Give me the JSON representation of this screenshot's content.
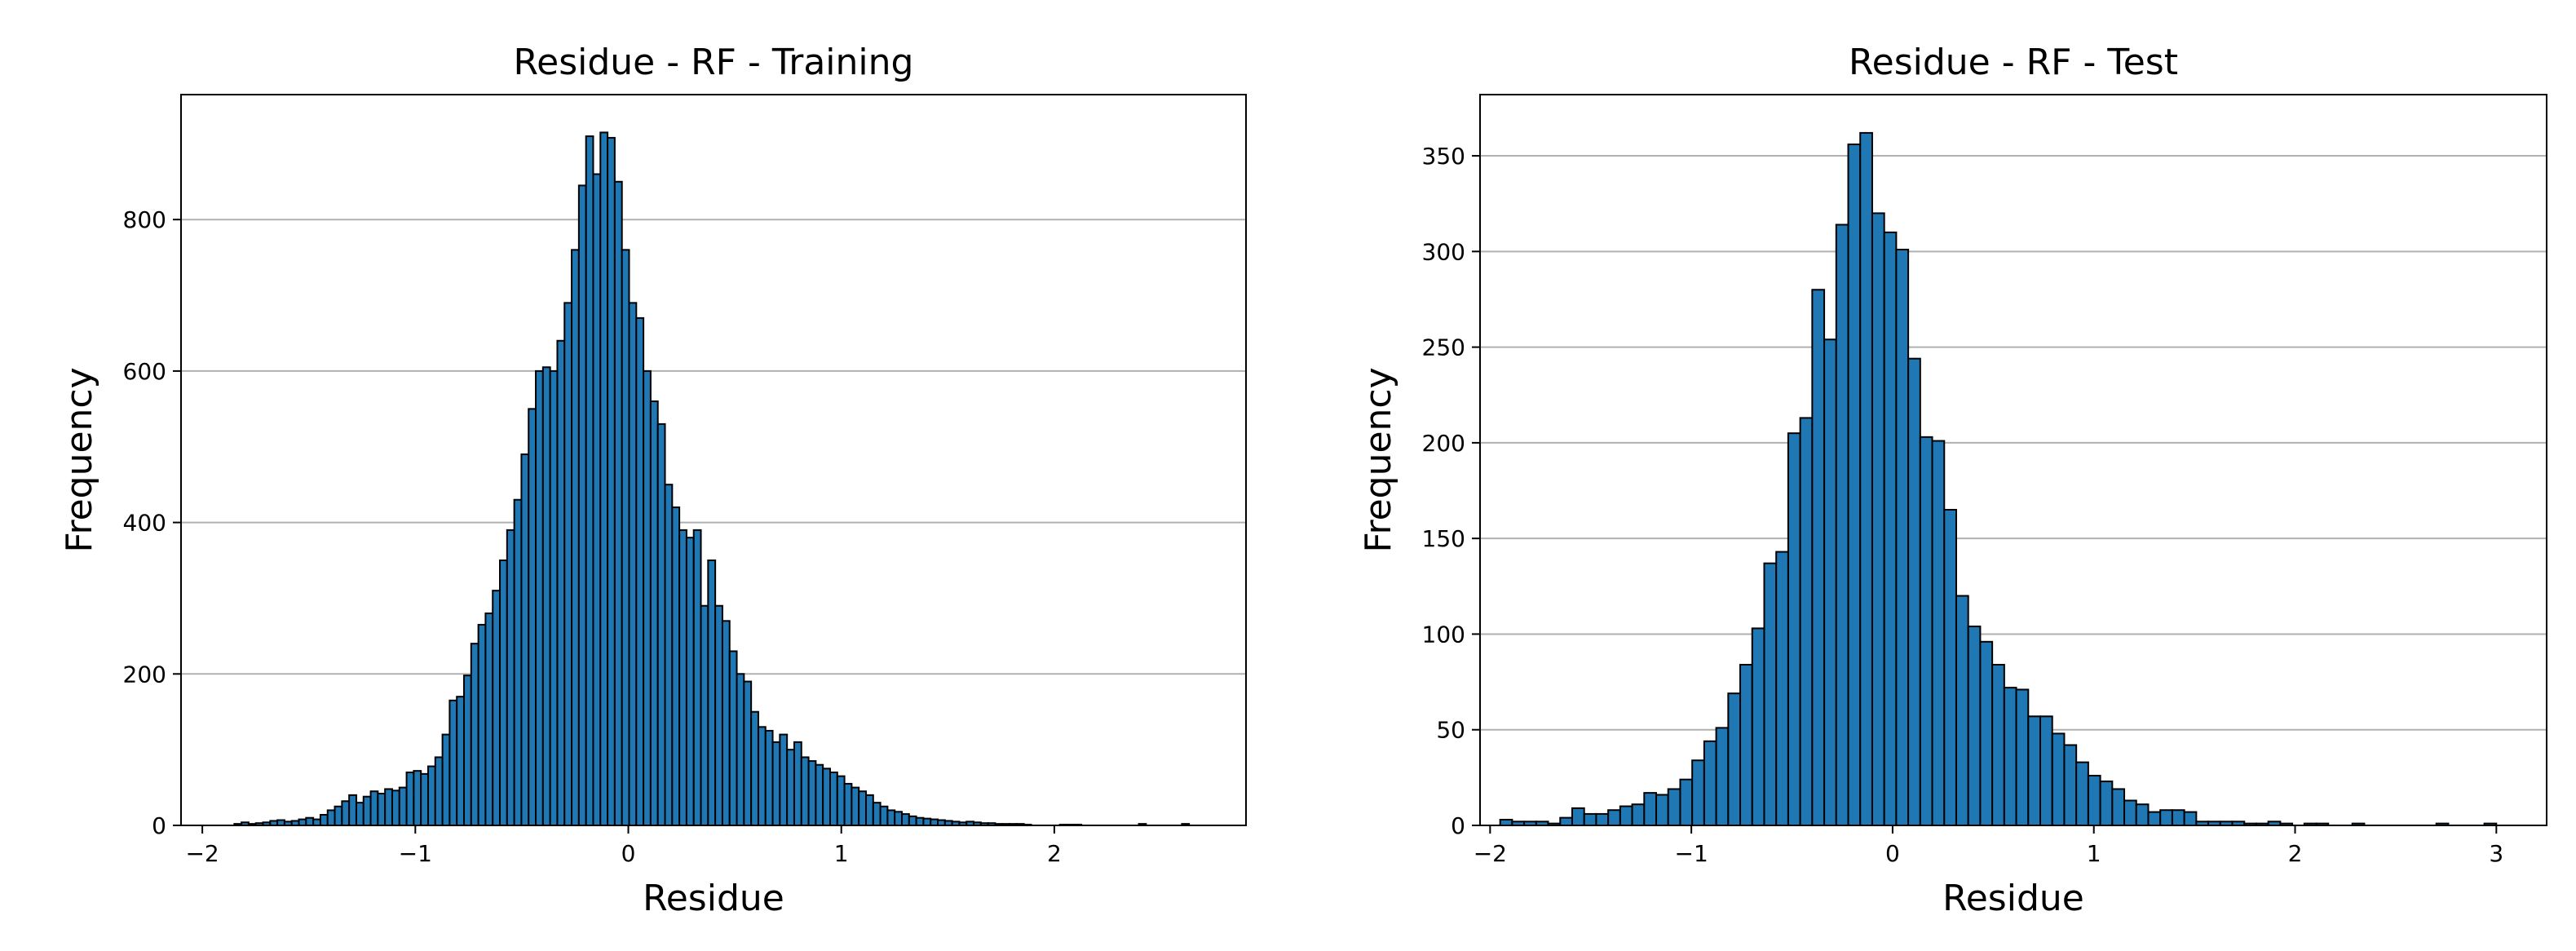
{
  "chart_data": [
    {
      "type": "bar",
      "title": "Residue - RF - Training",
      "xlabel": "Residue",
      "ylabel": "Frequency",
      "xlim": [
        -2.1,
        2.9
      ],
      "ylim": [
        0,
        965
      ],
      "xticks": [
        -2,
        -1,
        0,
        1,
        2
      ],
      "xtick_labels": [
        "−2",
        "−1",
        "0",
        "1",
        "2"
      ],
      "yticks": [
        0,
        200,
        400,
        600,
        800
      ],
      "ytick_labels": [
        "0",
        "200",
        "400",
        "600",
        "800"
      ],
      "grid": "y",
      "bar_color": "#1f77b4",
      "edge_color": "#000000",
      "bin_edges_range": [
        -1.85,
        2.7
      ],
      "values": [
        2,
        4,
        2,
        3,
        4,
        6,
        7,
        5,
        6,
        8,
        10,
        8,
        14,
        20,
        25,
        32,
        40,
        30,
        38,
        45,
        42,
        48,
        46,
        50,
        70,
        72,
        68,
        78,
        90,
        120,
        165,
        170,
        198,
        240,
        265,
        280,
        310,
        350,
        390,
        430,
        490,
        550,
        600,
        605,
        600,
        640,
        690,
        760,
        845,
        910,
        860,
        915,
        908,
        850,
        760,
        690,
        670,
        600,
        560,
        530,
        450,
        420,
        390,
        380,
        390,
        290,
        350,
        290,
        270,
        230,
        200,
        190,
        150,
        130,
        125,
        110,
        120,
        100,
        110,
        90,
        85,
        80,
        75,
        70,
        65,
        55,
        50,
        45,
        40,
        30,
        25,
        20,
        18,
        15,
        12,
        10,
        9,
        8,
        7,
        6,
        5,
        4,
        5,
        4,
        3,
        3,
        2,
        2,
        2,
        2,
        1,
        0,
        0,
        0,
        0,
        1,
        1,
        1,
        0,
        0,
        0,
        0,
        0,
        0,
        0,
        0,
        2,
        0,
        0,
        0,
        0,
        0,
        2,
        0,
        0
      ]
    },
    {
      "type": "bar",
      "title": "Residue - RF - Test",
      "xlabel": "Residue",
      "ylabel": "Frequency",
      "xlim": [
        -2.05,
        3.25
      ],
      "ylim": [
        0,
        382
      ],
      "xticks": [
        -2,
        -1,
        0,
        1,
        2,
        3
      ],
      "xtick_labels": [
        "−2",
        "−1",
        "0",
        "1",
        "2",
        "3"
      ],
      "yticks": [
        0,
        50,
        100,
        150,
        200,
        250,
        300,
        350
      ],
      "ytick_labels": [
        "0",
        "50",
        "100",
        "150",
        "200",
        "250",
        "300",
        "350"
      ],
      "grid": "y",
      "bar_color": "#1f77b4",
      "edge_color": "#000000",
      "bin_edges_range": [
        -1.95,
        3.0
      ],
      "values": [
        3,
        2,
        2,
        2,
        1,
        4,
        9,
        6,
        6,
        8,
        10,
        11,
        17,
        16,
        19,
        24,
        34,
        44,
        51,
        69,
        84,
        103,
        137,
        143,
        205,
        213,
        280,
        254,
        314,
        356,
        362,
        320,
        310,
        301,
        244,
        203,
        201,
        165,
        120,
        104,
        96,
        84,
        72,
        71,
        57,
        57,
        48,
        42,
        33,
        26,
        23,
        19,
        13,
        11,
        7,
        8,
        8,
        7,
        2,
        2,
        2,
        2,
        1,
        1,
        2,
        1,
        0,
        1,
        1,
        0,
        0,
        1,
        0,
        0,
        0,
        0,
        0,
        0,
        1,
        0,
        0,
        0,
        1
      ]
    }
  ]
}
